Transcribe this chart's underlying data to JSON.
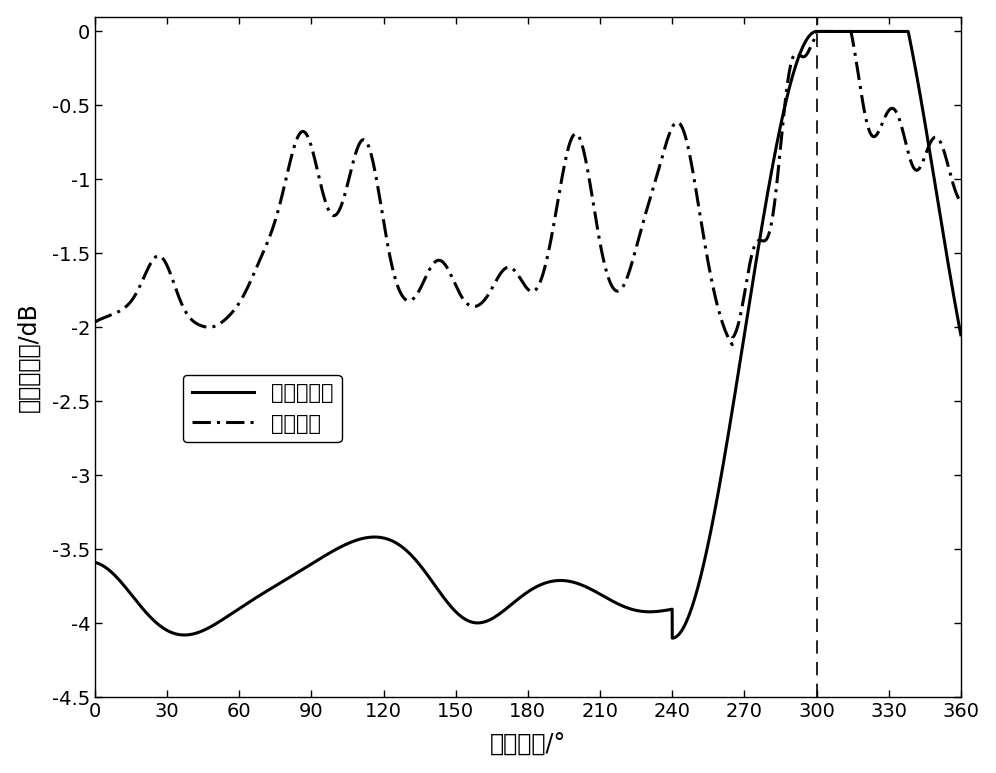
{
  "title": "",
  "xlabel": "波达方向/°",
  "ylabel": "平均空间谱/dB",
  "xlim": [
    0,
    360
  ],
  "ylim": [
    -4.5,
    0.1
  ],
  "xticks": [
    0,
    30,
    60,
    90,
    120,
    150,
    180,
    210,
    240,
    270,
    300,
    330,
    360
  ],
  "yticks": [
    0,
    -0.5,
    -1,
    -1.5,
    -2,
    -2.5,
    -3,
    -3.5,
    -4,
    -4.5
  ],
  "vline_x": 300,
  "legend": [
    "本发明方法",
    "传统方法"
  ],
  "background_color": "#ffffff",
  "line_color": "#000000"
}
